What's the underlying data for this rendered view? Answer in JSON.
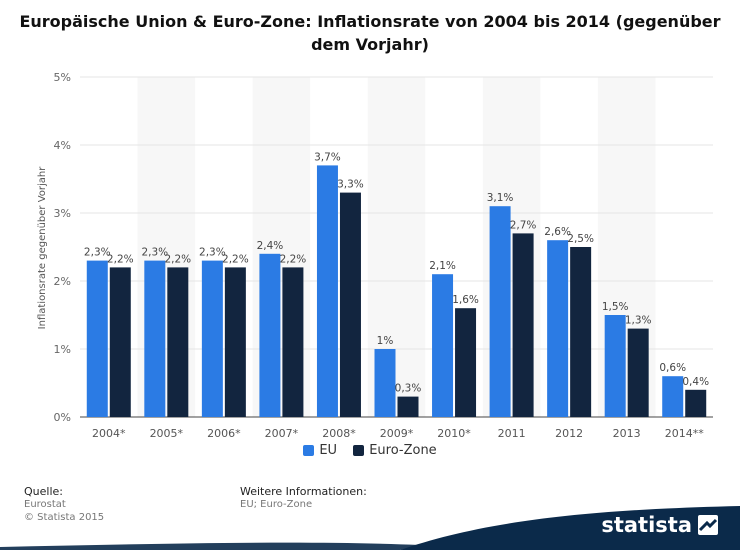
{
  "chart_data": {
    "type": "bar",
    "title": "Europäische Union & Euro-Zone: Inflationsrate von 2004 bis 2014 (gegenüber dem Vorjahr)",
    "ylabel": "Inflationsrate gegenüber Vorjahr",
    "categories": [
      "2004*",
      "2005*",
      "2006*",
      "2007*",
      "2008*",
      "2009*",
      "2010*",
      "2011",
      "2012",
      "2013",
      "2014**"
    ],
    "series": [
      {
        "name": "EU",
        "color": "#2b7be4",
        "values": [
          2.3,
          2.3,
          2.3,
          2.4,
          3.7,
          1.0,
          2.1,
          3.1,
          2.6,
          1.5,
          0.6
        ],
        "labels": [
          "2,3%",
          "2,3%",
          "2,3%",
          "2,4%",
          "3,7%",
          "1%",
          "2,1%",
          "3,1%",
          "2,6%",
          "1,5%",
          "0,6%"
        ]
      },
      {
        "name": "Euro-Zone",
        "color": "#12253f",
        "values": [
          2.2,
          2.2,
          2.2,
          2.2,
          3.3,
          0.3,
          1.6,
          2.7,
          2.5,
          1.3,
          0.4
        ],
        "labels": [
          "2,2%",
          "2,2%",
          "2,2%",
          "2,2%",
          "3,3%",
          "0,3%",
          "1,6%",
          "2,7%",
          "2,5%",
          "1,3%",
          "0,4%"
        ]
      }
    ],
    "ylim": [
      0,
      5
    ],
    "yticks": [
      0,
      1,
      2,
      3,
      4,
      5
    ],
    "ytick_labels": [
      "0%",
      "1%",
      "2%",
      "3%",
      "4%",
      "5%"
    ],
    "grid": true,
    "legend_position": "bottom-center"
  },
  "footer": {
    "source_heading": "Quelle:",
    "source_lines": [
      "Eurostat",
      "© Statista 2015"
    ],
    "info_heading": "Weitere Informationen:",
    "info_lines": [
      "EU; Euro-Zone"
    ]
  },
  "brand": {
    "name": "statista",
    "icon": "statista-logo-icon",
    "color": "#0b2a4a"
  }
}
